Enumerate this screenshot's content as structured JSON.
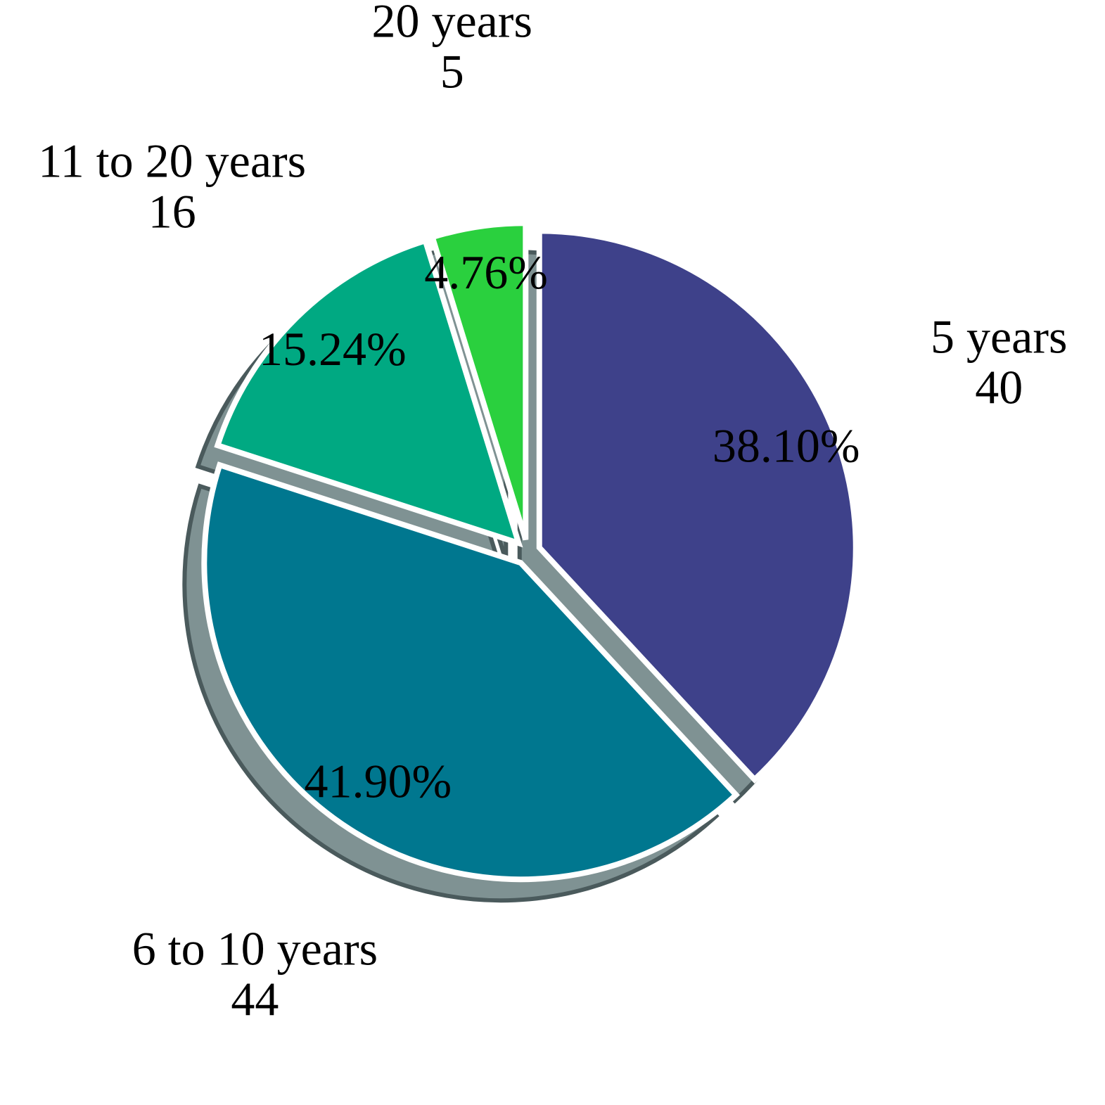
{
  "chart_data": {
    "type": "pie",
    "categories": [
      "5 years",
      "6 to 10 years",
      "11 to 20 years",
      "20 years"
    ],
    "values": [
      40,
      44,
      16,
      5
    ],
    "percent_labels": [
      "38.10%",
      "41.90%",
      "15.24%",
      "4.76%"
    ],
    "colors": [
      "#3e418a",
      "#00778f",
      "#00a982",
      "#2ad03e"
    ]
  }
}
